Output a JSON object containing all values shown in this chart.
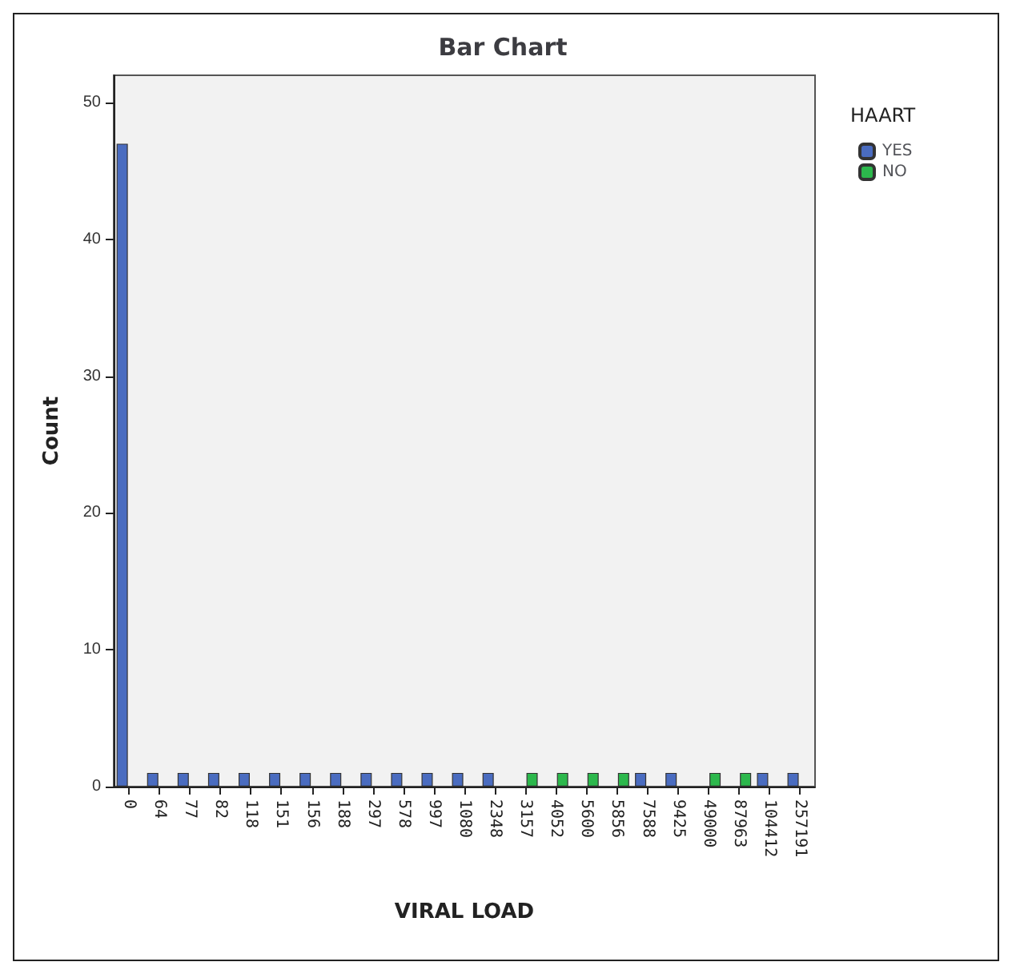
{
  "chart_data": {
    "type": "bar",
    "title": "Bar Chart",
    "xlabel": "VIRAL LOAD",
    "ylabel": "Count",
    "legend_title": "HAART",
    "categories": [
      "0",
      "64",
      "77",
      "82",
      "118",
      "151",
      "156",
      "188",
      "297",
      "578",
      "997",
      "1080",
      "2348",
      "3157",
      "4052",
      "5600",
      "5856",
      "7588",
      "9425",
      "49000",
      "87963",
      "104412",
      "257191"
    ],
    "series": [
      {
        "name": "YES",
        "color": "#4a6cc0",
        "values": [
          47,
          1,
          1,
          1,
          1,
          1,
          1,
          1,
          1,
          1,
          1,
          1,
          1,
          null,
          null,
          null,
          null,
          1,
          1,
          null,
          null,
          1,
          1
        ]
      },
      {
        "name": "NO",
        "color": "#2cb84c",
        "values": [
          null,
          null,
          null,
          null,
          null,
          null,
          null,
          null,
          null,
          null,
          null,
          null,
          null,
          1,
          1,
          1,
          1,
          null,
          null,
          1,
          1,
          null,
          null
        ]
      }
    ],
    "ylim": [
      0,
      52
    ],
    "yticks": [
      0,
      10,
      20,
      30,
      40,
      50
    ],
    "grid": false,
    "legend": "top right"
  }
}
